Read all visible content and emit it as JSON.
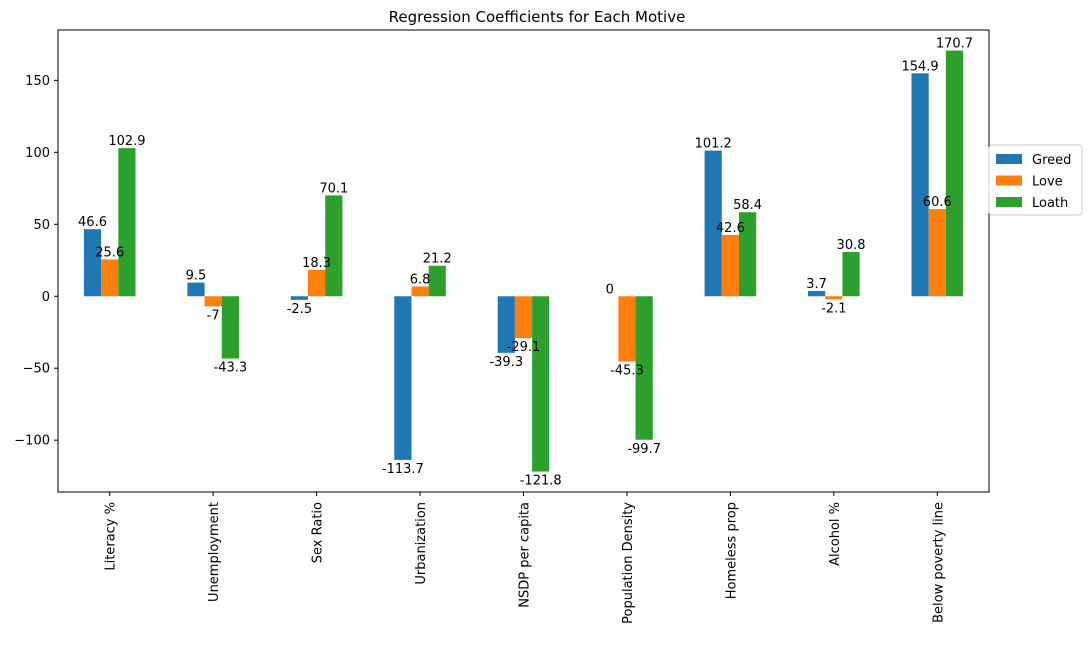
{
  "chart_data": {
    "type": "bar",
    "title": "Regression Coefficients for Each Motive",
    "xlabel": "",
    "ylabel": "",
    "categories": [
      "Literacy %",
      "Unemployment",
      "Sex Ratio",
      "Urbanization",
      "NSDP per capita",
      "Population Density",
      "Homeless prop",
      "Alcohol %",
      "Below poverty line"
    ],
    "series": [
      {
        "name": "Greed",
        "color": "#1f77b4",
        "values": [
          46.6,
          9.5,
          -2.5,
          -113.7,
          -39.3,
          0,
          101.2,
          3.7,
          154.9
        ]
      },
      {
        "name": "Love",
        "color": "#ff7f0e",
        "values": [
          25.6,
          -7,
          18.3,
          6.8,
          -29.1,
          -45.3,
          42.6,
          -2.1,
          60.6
        ]
      },
      {
        "name": "Loath",
        "color": "#2ca02c",
        "values": [
          102.9,
          -43.3,
          70.1,
          21.2,
          -121.8,
          -99.7,
          58.4,
          30.8,
          170.7
        ]
      }
    ],
    "value_labels": [
      [
        "46.6",
        "9.5",
        "-2.5",
        "-113.7",
        "-39.3",
        "0",
        "101.2",
        "3.7",
        "154.9"
      ],
      [
        "25.6",
        "-7",
        "18.3",
        "6.8",
        "-29.1",
        "-45.3",
        "42.6",
        "-2.1",
        "60.6"
      ],
      [
        "102.9",
        "-43.3",
        "70.1",
        "21.2",
        "-121.8",
        "-99.7",
        "58.4",
        "30.8",
        "170.7"
      ]
    ],
    "ylim": [
      -136,
      185
    ],
    "yticks": [
      -100,
      -50,
      0,
      50,
      100,
      150
    ],
    "ytick_labels": [
      "−100",
      "−50",
      "0",
      "50",
      "100",
      "150"
    ],
    "grid": false,
    "legend_position": "right, outside axes"
  }
}
